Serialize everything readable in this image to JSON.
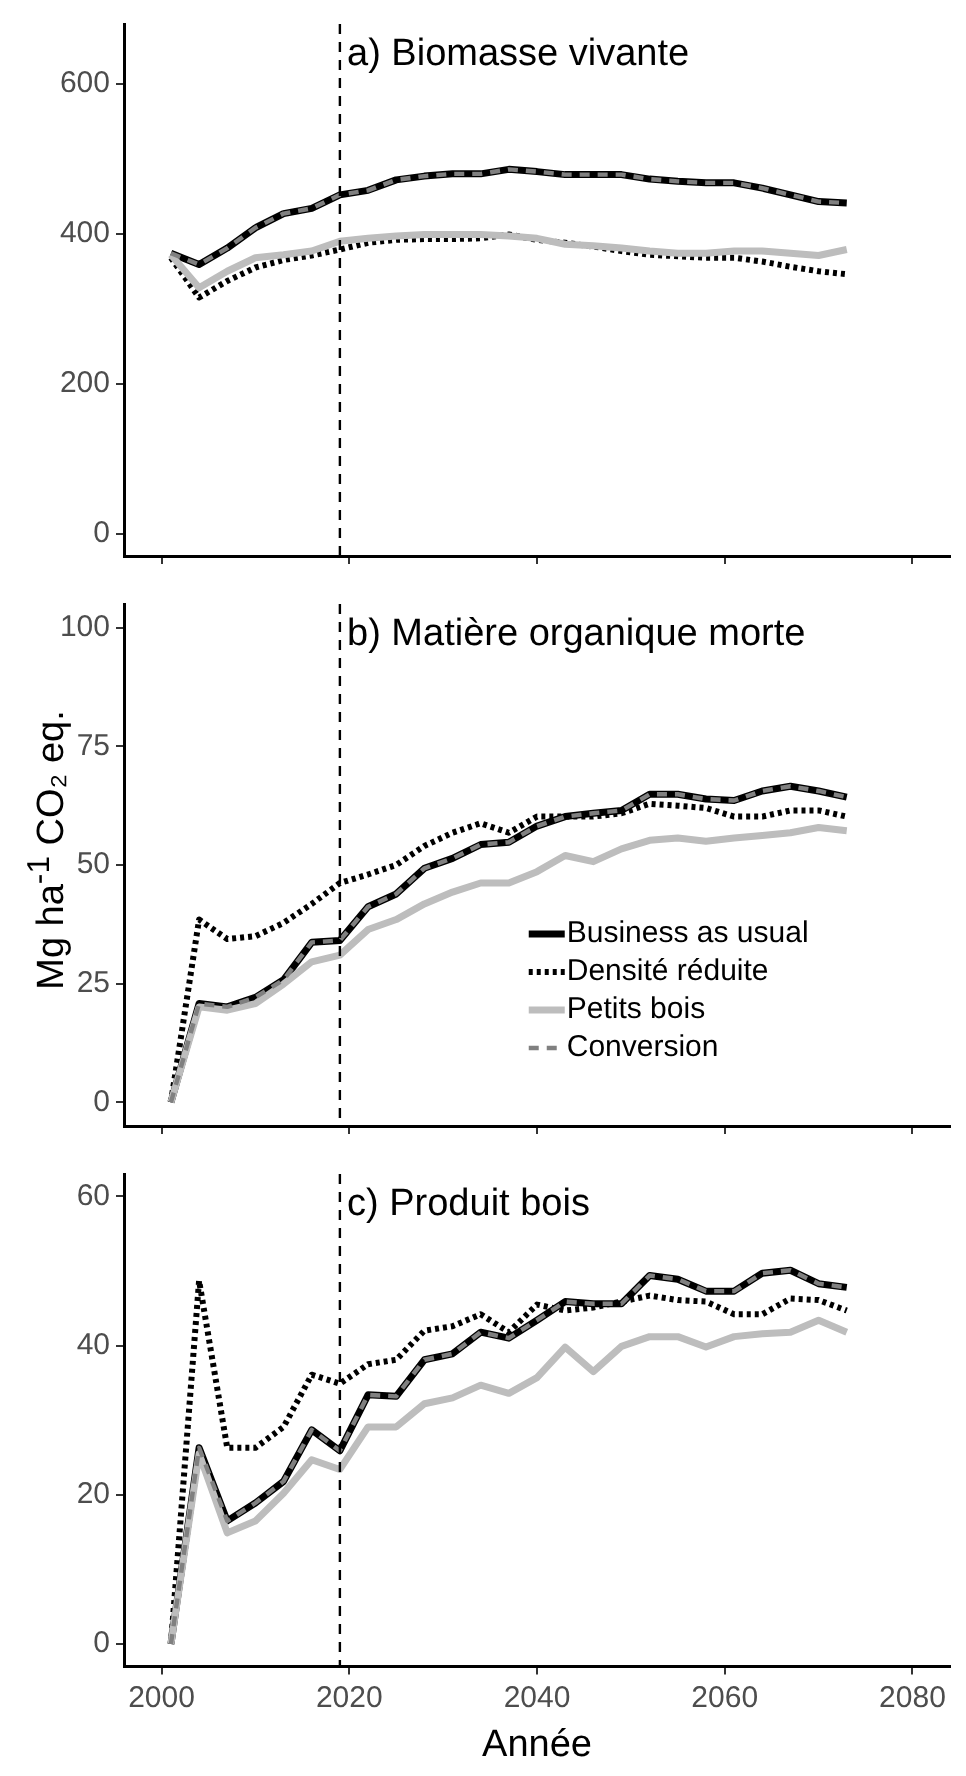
{
  "chart_data": [
    {
      "type": "line",
      "title": "a) Biomasse vivante",
      "x": [
        2001,
        2004,
        2007,
        2010,
        2013,
        2016,
        2019,
        2022,
        2025,
        2028,
        2031,
        2034,
        2037,
        2040,
        2043,
        2046,
        2049,
        2052,
        2055,
        2058,
        2061,
        2064,
        2067,
        2070,
        2073
      ],
      "xlim": [
        1996,
        2084
      ],
      "xticks": [
        2000,
        2020,
        2040,
        2060,
        2080
      ],
      "ylim": [
        -30,
        680
      ],
      "yticks": [
        0,
        200,
        400,
        600
      ],
      "tick_labels": "y",
      "grid": false,
      "legend": false,
      "marker": "none",
      "ref_lines": [
        {
          "axis": "x",
          "value": 2019,
          "label": null,
          "line_style": "dashed",
          "color": "#000000"
        }
      ],
      "series": [
        {
          "color": "#000000",
          "line_style": "solid",
          "values": [
            374,
            359,
            381,
            408,
            427,
            434,
            452,
            458,
            472,
            477,
            480,
            480,
            486,
            483,
            479,
            479,
            479,
            473,
            470,
            468,
            468,
            461,
            452,
            443,
            441
          ]
        },
        {
          "color": "#000000",
          "line_style": "dotted",
          "values": [
            368,
            315,
            337,
            355,
            365,
            371,
            379,
            388,
            392,
            393,
            393,
            394,
            399,
            392,
            388,
            383,
            377,
            372,
            370,
            368,
            368,
            363,
            356,
            350,
            346
          ]
        },
        {
          "color": "#bdbdbd",
          "line_style": "solid",
          "values": [
            372,
            328,
            350,
            368,
            372,
            377,
            390,
            394,
            397,
            399,
            399,
            399,
            397,
            394,
            386,
            384,
            381,
            377,
            374,
            374,
            377,
            377,
            374,
            371,
            379
          ]
        },
        {
          "color": "#808080",
          "line_style": "dashed",
          "values": [
            374,
            359,
            381,
            408,
            427,
            434,
            452,
            458,
            472,
            477,
            480,
            480,
            486,
            483,
            479,
            479,
            479,
            473,
            470,
            468,
            468,
            461,
            452,
            443,
            441
          ]
        }
      ]
    },
    {
      "type": "line",
      "title": "b) Matière organique morte",
      "ylabel": "Mg ha$^{-1}$ CO₂ eq.",
      "x": [
        2001,
        2004,
        2007,
        2010,
        2013,
        2016,
        2019,
        2022,
        2025,
        2028,
        2031,
        2034,
        2037,
        2040,
        2043,
        2046,
        2049,
        2052,
        2055,
        2058,
        2061,
        2064,
        2067,
        2070,
        2073
      ],
      "xlim": [
        1996,
        2084
      ],
      "xticks": [
        2000,
        2020,
        2040,
        2060,
        2080
      ],
      "ylim": [
        -5,
        105
      ],
      "yticks": [
        0,
        25,
        50,
        75,
        100
      ],
      "tick_labels": "y",
      "grid": false,
      "legend": "bottom right",
      "marker": "none",
      "ref_lines": [
        {
          "axis": "x",
          "value": 2019,
          "label": null,
          "line_style": "dashed",
          "color": "#000000"
        }
      ],
      "series": [
        {
          "name": "Business as usual",
          "color": "#000000",
          "line_style": "solid",
          "values": [
            0,
            20.8,
            20.1,
            22.1,
            25.8,
            33.7,
            34.1,
            41.2,
            43.9,
            49.3,
            51.4,
            54.3,
            54.8,
            58.2,
            60.2,
            60.9,
            61.5,
            64.9,
            64.9,
            63.9,
            63.6,
            65.6,
            66.6,
            65.6,
            64.3
          ]
        },
        {
          "name": "Densité réduite",
          "color": "#000000",
          "line_style": "dotted",
          "values": [
            0,
            38.5,
            34.4,
            35,
            37.8,
            41.8,
            46.2,
            48,
            50,
            54,
            56.8,
            58.8,
            56.8,
            60.2,
            60.2,
            60.2,
            60.9,
            62.9,
            62.5,
            62,
            60.2,
            60.2,
            61.5,
            61.5,
            60.2
          ]
        },
        {
          "name": "Petits bois",
          "color": "#bdbdbd",
          "line_style": "solid",
          "values": [
            0,
            20.1,
            19.4,
            20.8,
            24.9,
            29.6,
            31,
            36.4,
            38.5,
            41.8,
            44.3,
            46.2,
            46.2,
            48.6,
            52,
            50.7,
            53.4,
            55.2,
            55.7,
            55,
            55.7,
            56.2,
            56.8,
            57.9,
            57.2
          ]
        },
        {
          "name": "Conversion",
          "color": "#808080",
          "line_style": "dashed",
          "values": [
            0,
            20.8,
            20.1,
            22.1,
            25.8,
            33.7,
            34.1,
            41.2,
            43.9,
            49.3,
            51.4,
            54.3,
            54.8,
            58.2,
            60.2,
            60.9,
            61.5,
            64.9,
            64.9,
            63.9,
            63.6,
            65.6,
            66.6,
            65.6,
            64.3
          ]
        }
      ]
    },
    {
      "type": "line",
      "title": "c) Produit bois",
      "xlabel": "Année",
      "x": [
        2001,
        2004,
        2007,
        2010,
        2013,
        2016,
        2019,
        2022,
        2025,
        2028,
        2031,
        2034,
        2037,
        2040,
        2043,
        2046,
        2049,
        2052,
        2055,
        2058,
        2061,
        2064,
        2067,
        2070,
        2073
      ],
      "xlim": [
        1996,
        2084
      ],
      "xticks": [
        2000,
        2020,
        2040,
        2060,
        2080
      ],
      "ylim": [
        -3,
        63
      ],
      "yticks": [
        0,
        20,
        40,
        60
      ],
      "grid": false,
      "legend": false,
      "marker": "none",
      "ref_lines": [
        {
          "axis": "x",
          "value": 2019,
          "label": null,
          "line_style": "dashed",
          "color": "#000000"
        }
      ],
      "series": [
        {
          "color": "#000000",
          "line_style": "solid",
          "values": [
            0,
            26.3,
            16.5,
            18.9,
            21.8,
            28.7,
            25.9,
            33.4,
            33.2,
            38.1,
            38.9,
            41.8,
            41,
            43.4,
            45.9,
            45.6,
            45.6,
            49.4,
            48.9,
            47.3,
            47.3,
            49.7,
            50.1,
            48.3,
            47.8
          ]
        },
        {
          "color": "#000000",
          "line_style": "dotted",
          "values": [
            0,
            48.7,
            26.3,
            26.3,
            29.1,
            36.1,
            34.9,
            37.5,
            38.1,
            42,
            42.6,
            44.2,
            41.8,
            45.5,
            44.7,
            45.1,
            45.9,
            46.7,
            46.1,
            45.9,
            44.2,
            44.2,
            46.3,
            46.1,
            44.7
          ]
        },
        {
          "color": "#bdbdbd",
          "line_style": "solid",
          "values": [
            0,
            25.5,
            14.9,
            16.5,
            20.2,
            24.7,
            23.4,
            29.1,
            29.1,
            32.2,
            33,
            34.7,
            33.6,
            35.7,
            39.8,
            36.5,
            39.9,
            41.2,
            41.2,
            39.8,
            41.2,
            41.6,
            41.8,
            43.4,
            41.8
          ]
        },
        {
          "color": "#808080",
          "line_style": "dashed",
          "values": [
            0,
            26.3,
            16.5,
            18.9,
            21.8,
            28.7,
            25.9,
            33.4,
            33.2,
            38.1,
            38.9,
            41.8,
            41,
            43.4,
            45.9,
            45.6,
            45.6,
            49.4,
            48.9,
            47.3,
            47.3,
            49.7,
            50.1,
            48.3,
            47.8
          ]
        }
      ]
    }
  ]
}
